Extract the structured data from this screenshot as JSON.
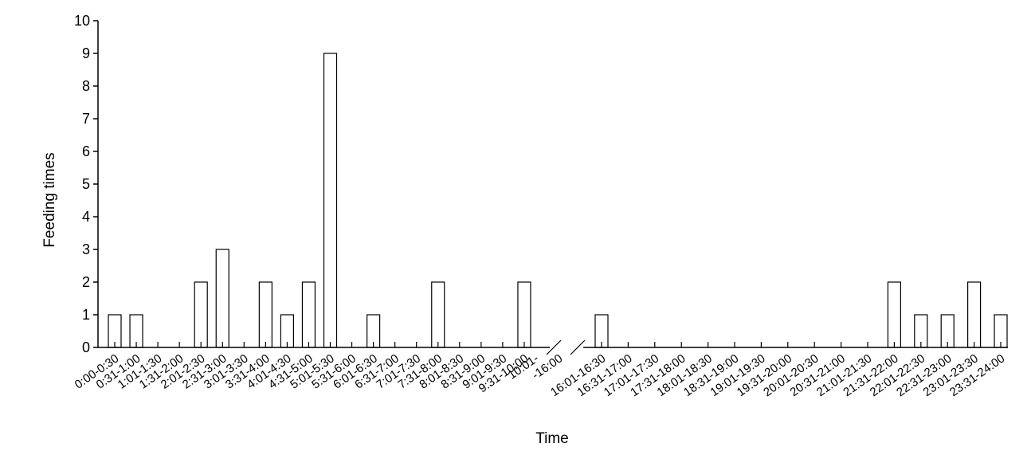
{
  "chart_data": {
    "type": "bar",
    "xlabel": "Time",
    "ylabel": "Feeding times",
    "ylim": [
      0,
      10
    ],
    "yticks": [
      0,
      1,
      2,
      3,
      4,
      5,
      6,
      7,
      8,
      9,
      10
    ],
    "axis_break": "between 9:31-10:00 and 16:01-16:30",
    "colors": {
      "bar_fill": "#ffffff",
      "bar_stroke": "#000000",
      "axis": "#000000"
    },
    "segments": [
      {
        "categories": [
          "0:00-0:30",
          "0:31-1:00",
          "1:01-1:30",
          "1:31-2:00",
          "2:01-2:30",
          "2:31-3:00",
          "3:01-3:30",
          "3:31-4:00",
          "4:01-4:30",
          "4:31-5:00",
          "5:01-5:30",
          "5:31-6:00",
          "6:01-6:30",
          "6:31-7:00",
          "7:01-7:30",
          "7:31-8:00",
          "8:01-8:30",
          "8:31-9:00",
          "9:01-9:30",
          "9:31-10:00"
        ],
        "values": [
          1,
          1,
          0,
          0,
          2,
          3,
          0,
          2,
          1,
          2,
          9,
          0,
          1,
          0,
          0,
          2,
          0,
          0,
          0,
          2
        ]
      },
      {
        "categories": [
          "16:01-16:30",
          "16:31-17:00",
          "17:01-17:30",
          "17:31-18:00",
          "18:01-18:30",
          "18:31-19:00",
          "19:01-19:30",
          "19:31-20:00",
          "20:01-20:30",
          "20:31-21:00",
          "21:01-21:30",
          "21:31-22:00",
          "22:01-22:30",
          "22:31-23:00",
          "23:01-23:30",
          "23:31-24:00"
        ],
        "values": [
          1,
          0,
          0,
          0,
          0,
          0,
          0,
          0,
          0,
          0,
          0,
          2,
          1,
          1,
          2,
          1
        ]
      }
    ],
    "break_label": [
      "10:01-",
      "-16:00"
    ]
  }
}
